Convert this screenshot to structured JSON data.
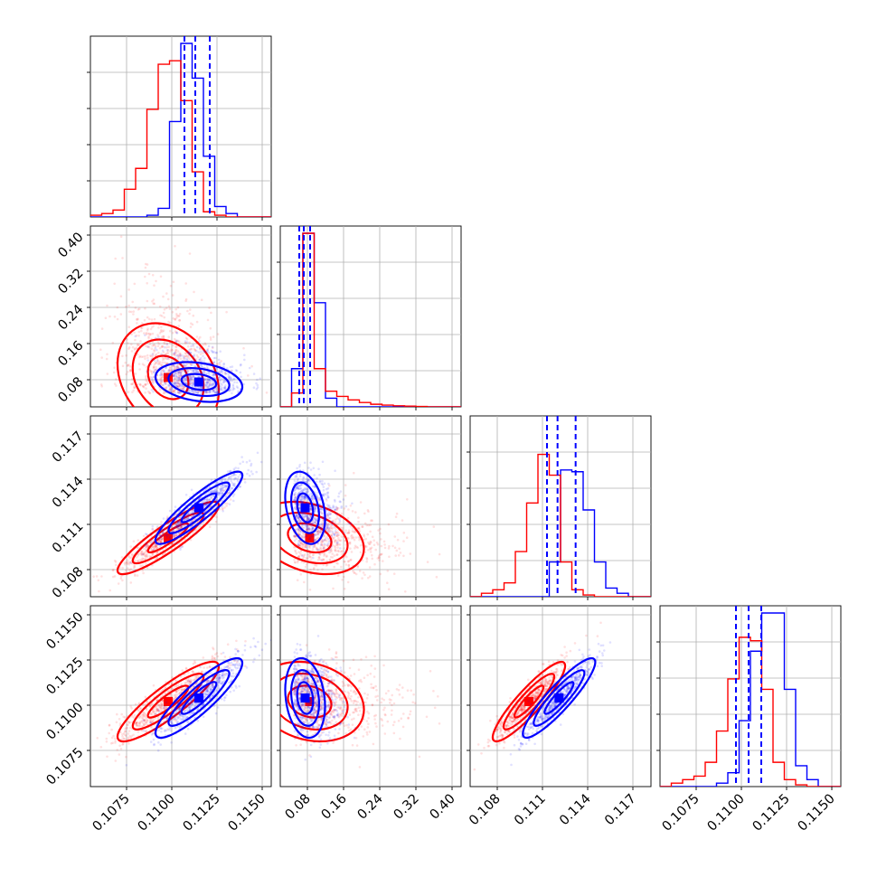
{
  "colors": {
    "series_a": "#0000ff",
    "series_b": "#ff0000",
    "grid": "#b0b0b0",
    "frame": "#000000"
  },
  "chart_data": {
    "type": "corner",
    "grid": true,
    "legend": "none",
    "parameters": [
      {
        "range": [
          0.1055,
          0.1155
        ],
        "ticks": [
          0.1075,
          0.11,
          0.1125,
          0.115
        ],
        "tick_labels": [
          "0.1075",
          "0.1100",
          "0.1125",
          "0.1150"
        ]
      },
      {
        "range": [
          0.02,
          0.42
        ],
        "ticks": [
          0.08,
          0.16,
          0.24,
          0.32,
          0.4
        ],
        "tick_labels": [
          "0.08",
          "0.16",
          "0.24",
          "0.32",
          "0.40"
        ]
      },
      {
        "range": [
          0.1062,
          0.1182
        ],
        "ticks": [
          0.108,
          0.111,
          0.114,
          0.117
        ],
        "tick_labels": [
          "0.108",
          "0.111",
          "0.114",
          "0.117"
        ]
      },
      {
        "range": [
          0.1055,
          0.1155
        ],
        "ticks": [
          0.1075,
          0.11,
          0.1125,
          0.115
        ],
        "tick_labels": [
          "0.1075",
          "0.1100",
          "0.1125",
          "0.1150"
        ]
      }
    ],
    "series": [
      {
        "color": "#0000ff",
        "means": [
          0.1115,
          0.075,
          0.1121,
          0.1104
        ],
        "sds": [
          0.0012,
          0.022,
          0.0012,
          0.0011
        ],
        "quantiles": [
          [
            0.1107,
            0.1113,
            0.1121
          ],
          [
            0.062,
            0.072,
            0.086
          ],
          [
            0.1113,
            0.112,
            0.1132
          ],
          [
            0.1097,
            0.1104,
            0.1111
          ]
        ],
        "histograms": [
          [
            0.0,
            0.0,
            0.0,
            0.0,
            0.0,
            0.01,
            0.05,
            0.55,
            1.0,
            0.8,
            0.35,
            0.06,
            0.02,
            0.0,
            0.0,
            0.0
          ],
          [
            0.0,
            0.22,
            1.0,
            0.6,
            0.05,
            0.0,
            0.0,
            0.0,
            0.0,
            0.0,
            0.0,
            0.0,
            0.0,
            0.0,
            0.0,
            0.0
          ],
          [
            0.0,
            0.0,
            0.0,
            0.0,
            0.0,
            0.0,
            0.0,
            0.2,
            0.73,
            0.72,
            0.5,
            0.2,
            0.05,
            0.02,
            0.0,
            0.0
          ],
          [
            0.0,
            0.0,
            0.0,
            0.0,
            0.0,
            0.02,
            0.08,
            0.38,
            0.78,
            1.0,
            1.0,
            0.56,
            0.12,
            0.04,
            0.0,
            0.0
          ]
        ]
      },
      {
        "color": "#ff0000",
        "means": [
          0.1098,
          0.085,
          0.1101,
          0.1102
        ],
        "sds": [
          0.0014,
          0.06,
          0.0012,
          0.0011
        ],
        "histograms": [
          [
            0.01,
            0.02,
            0.04,
            0.16,
            0.28,
            0.62,
            0.88,
            0.9,
            0.67,
            0.26,
            0.03,
            0.01,
            0.0,
            0.0,
            0.0,
            0.0
          ],
          [
            0.0,
            0.08,
            1.0,
            0.22,
            0.09,
            0.06,
            0.04,
            0.025,
            0.015,
            0.01,
            0.006,
            0.004,
            0.002,
            0.0,
            0.0,
            0.0
          ],
          [
            0.0,
            0.02,
            0.04,
            0.08,
            0.26,
            0.54,
            0.82,
            0.7,
            0.2,
            0.04,
            0.01,
            0.0,
            0.0,
            0.0,
            0.0,
            0.0
          ],
          [
            0.0,
            0.02,
            0.04,
            0.06,
            0.14,
            0.32,
            0.62,
            0.86,
            0.84,
            0.56,
            0.14,
            0.04,
            0.01,
            0.0,
            0.0,
            0.0
          ]
        ]
      }
    ]
  }
}
